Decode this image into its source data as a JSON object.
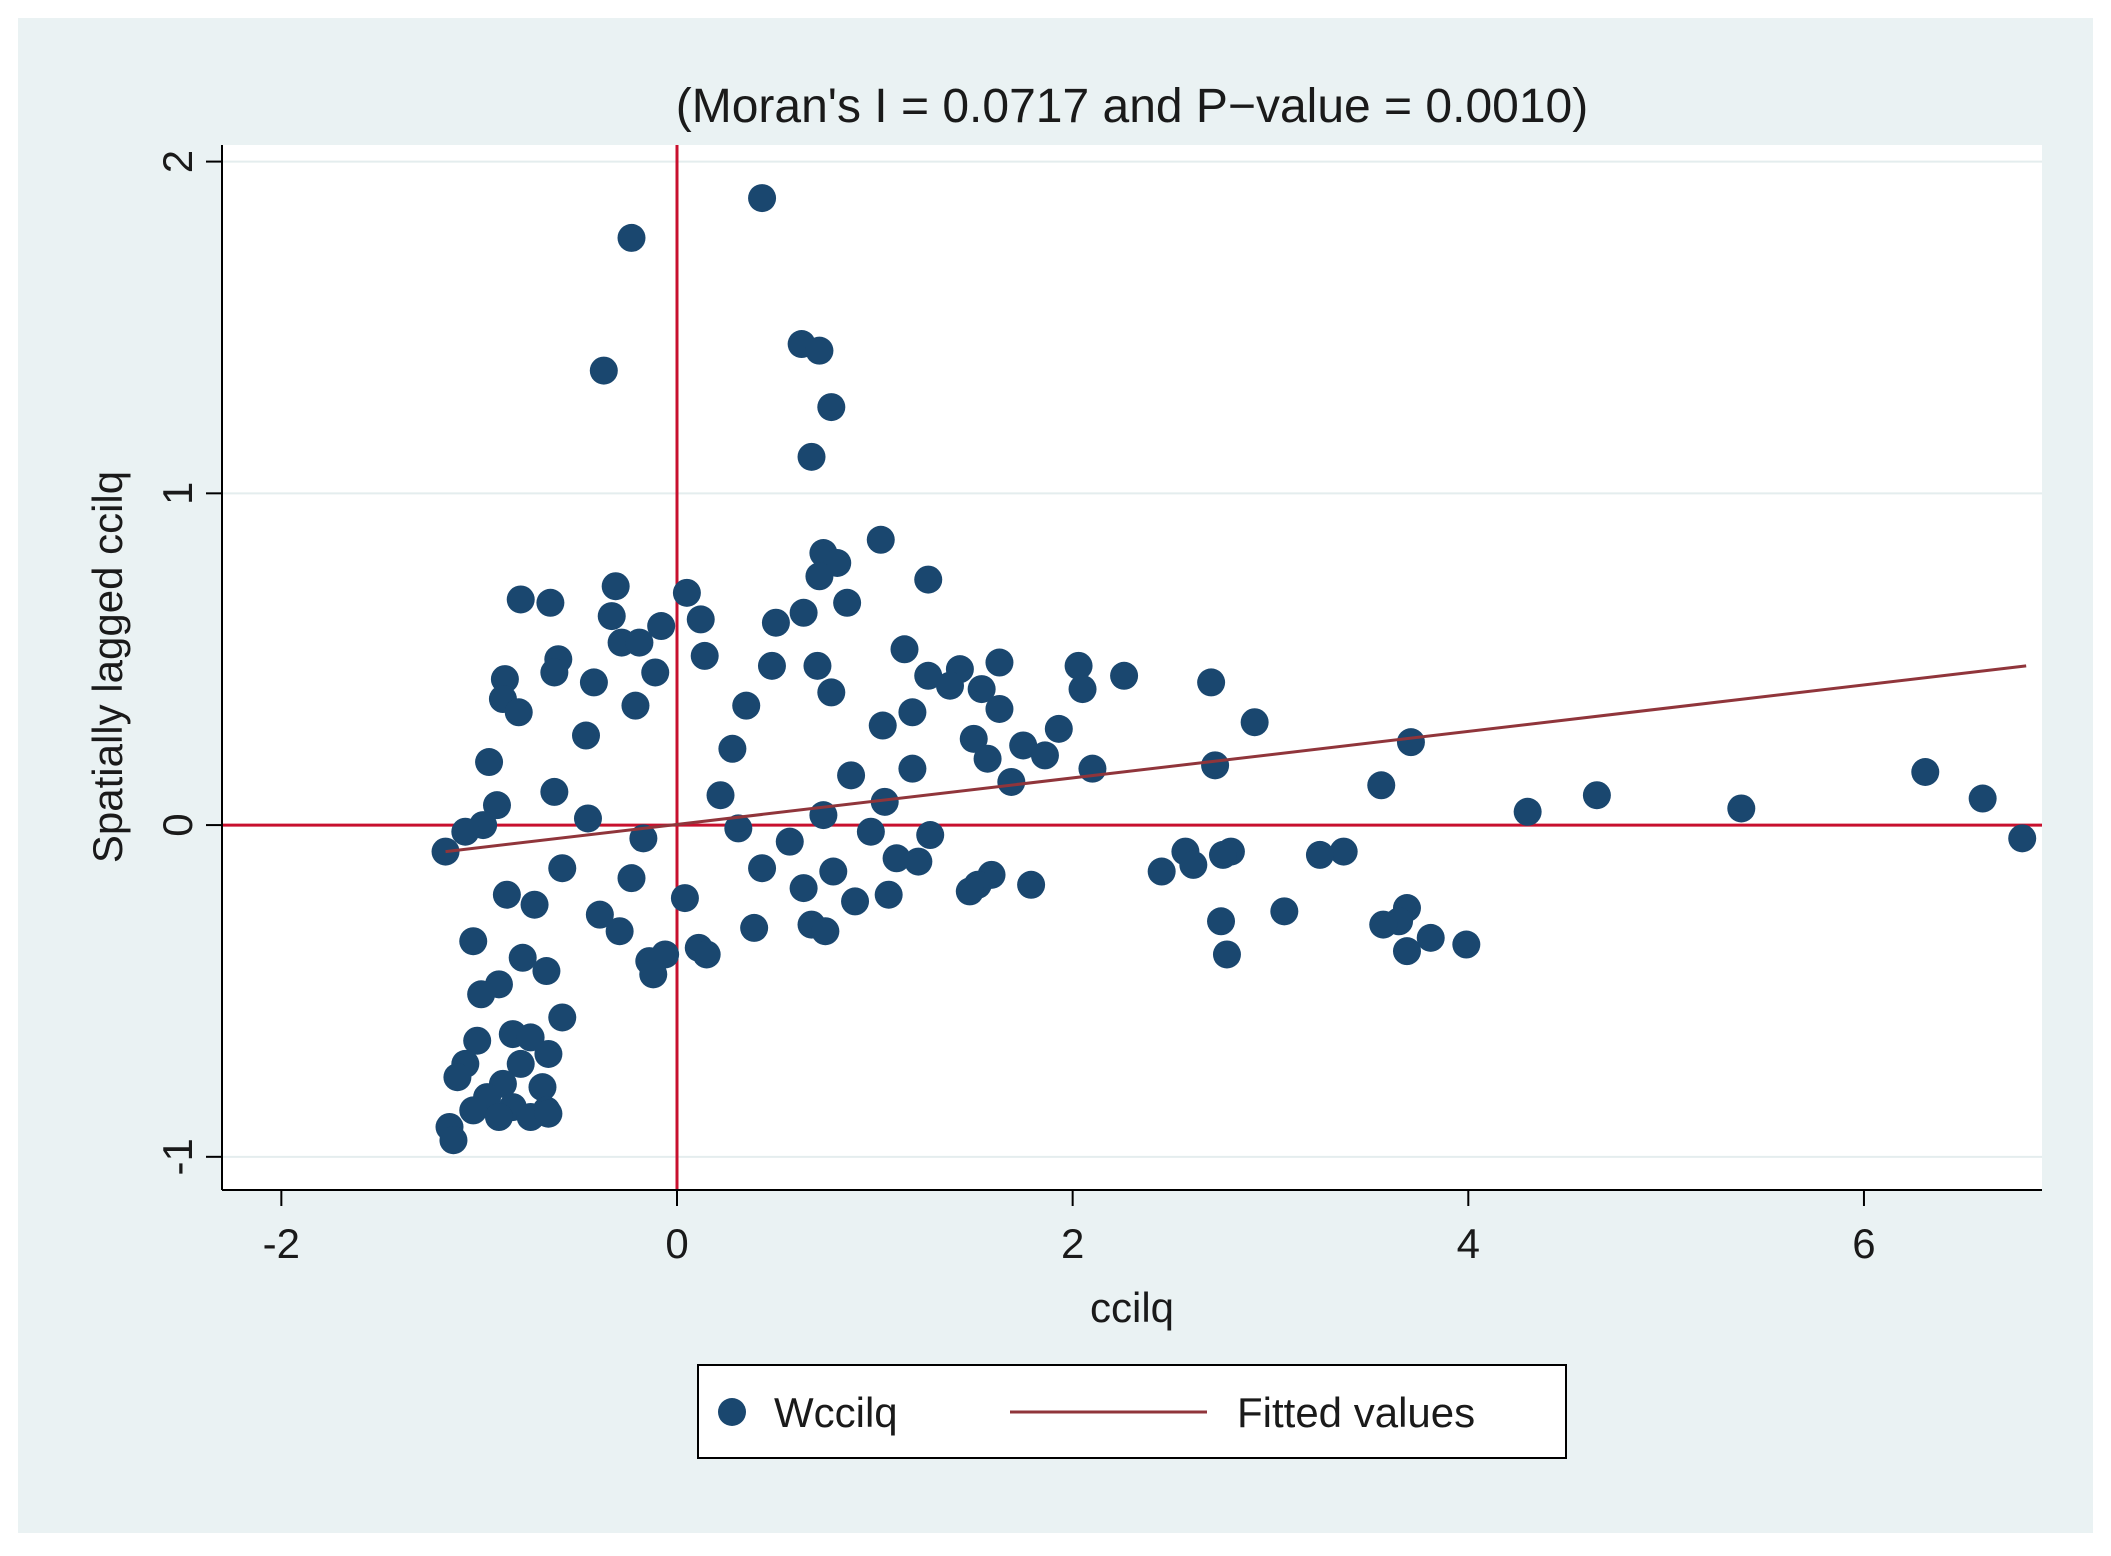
{
  "chart_data": {
    "type": "scatter",
    "title": "(Moran's I = 0.0717 and P−value = 0.0010)",
    "xlabel": "ccilq",
    "ylabel": "Spatially lagged ccilq",
    "xlim": [
      -2.3,
      6.9
    ],
    "ylim": [
      -1.1,
      2.05
    ],
    "x_ticks": [
      -2,
      0,
      2,
      4,
      6
    ],
    "x_tick_labels": [
      "-2",
      "0",
      "2",
      "4",
      "6"
    ],
    "y_ticks": [
      -1,
      0,
      1,
      2
    ],
    "y_tick_labels": [
      "-1",
      "0",
      "1",
      "2"
    ],
    "grid": "horizontal",
    "legend_position": "bottom",
    "reference_lines": {
      "x": 0,
      "y": 0,
      "color": "#c8102e"
    },
    "colors": {
      "page_background": "#ffffff",
      "outer_background": "#eaf2f3",
      "plot_background": "#ffffff",
      "points": "#1a476f",
      "fit_line": "#90353b",
      "reference_lines": "#c8102e",
      "grid": "#e4edee"
    },
    "series": [
      {
        "name": "Wccilq",
        "kind": "scatter",
        "points": [
          [
            0.43,
            1.89
          ],
          [
            -0.23,
            1.77
          ],
          [
            -0.37,
            1.37
          ],
          [
            0.63,
            1.45
          ],
          [
            0.72,
            1.43
          ],
          [
            0.78,
            1.26
          ],
          [
            0.68,
            1.11
          ],
          [
            1.03,
            0.86
          ],
          [
            0.74,
            0.82
          ],
          [
            0.81,
            0.79
          ],
          [
            0.72,
            0.75
          ],
          [
            1.27,
            0.74
          ],
          [
            -0.31,
            0.72
          ],
          [
            0.05,
            0.7
          ],
          [
            -0.79,
            0.68
          ],
          [
            -0.64,
            0.67
          ],
          [
            0.86,
            0.67
          ],
          [
            0.64,
            0.64
          ],
          [
            -0.33,
            0.63
          ],
          [
            0.12,
            0.62
          ],
          [
            0.5,
            0.61
          ],
          [
            -0.08,
            0.6
          ],
          [
            -0.28,
            0.55
          ],
          [
            -0.19,
            0.55
          ],
          [
            1.15,
            0.53
          ],
          [
            0.14,
            0.51
          ],
          [
            -0.6,
            0.5
          ],
          [
            1.63,
            0.49
          ],
          [
            2.03,
            0.48
          ],
          [
            0.71,
            0.48
          ],
          [
            0.48,
            0.48
          ],
          [
            1.43,
            0.47
          ],
          [
            -0.62,
            0.46
          ],
          [
            -0.11,
            0.46
          ],
          [
            1.27,
            0.45
          ],
          [
            2.26,
            0.45
          ],
          [
            -0.87,
            0.44
          ],
          [
            -0.42,
            0.43
          ],
          [
            2.7,
            0.43
          ],
          [
            1.38,
            0.42
          ],
          [
            2.05,
            0.41
          ],
          [
            1.54,
            0.41
          ],
          [
            0.78,
            0.4
          ],
          [
            -0.88,
            0.38
          ],
          [
            0.35,
            0.36
          ],
          [
            -0.21,
            0.36
          ],
          [
            1.63,
            0.35
          ],
          [
            -0.8,
            0.34
          ],
          [
            1.19,
            0.34
          ],
          [
            2.92,
            0.31
          ],
          [
            1.04,
            0.3
          ],
          [
            1.93,
            0.29
          ],
          [
            -0.46,
            0.27
          ],
          [
            1.5,
            0.26
          ],
          [
            3.71,
            0.25
          ],
          [
            1.75,
            0.24
          ],
          [
            0.28,
            0.23
          ],
          [
            1.86,
            0.21
          ],
          [
            1.57,
            0.2
          ],
          [
            -0.95,
            0.19
          ],
          [
            2.72,
            0.18
          ],
          [
            2.1,
            0.17
          ],
          [
            1.19,
            0.17
          ],
          [
            6.31,
            0.16
          ],
          [
            0.88,
            0.15
          ],
          [
            1.69,
            0.13
          ],
          [
            3.56,
            0.12
          ],
          [
            -0.62,
            0.1
          ],
          [
            4.65,
            0.09
          ],
          [
            0.22,
            0.09
          ],
          [
            6.6,
            0.08
          ],
          [
            1.05,
            0.07
          ],
          [
            -0.91,
            0.06
          ],
          [
            5.38,
            0.05
          ],
          [
            4.3,
            0.04
          ],
          [
            0.74,
            0.03
          ],
          [
            -0.45,
            0.02
          ],
          [
            -0.98,
            0.0
          ],
          [
            0.31,
            -0.01
          ],
          [
            -1.07,
            -0.02
          ],
          [
            0.98,
            -0.02
          ],
          [
            1.28,
            -0.03
          ],
          [
            -0.17,
            -0.04
          ],
          [
            6.8,
            -0.04
          ],
          [
            0.57,
            -0.05
          ],
          [
            -1.17,
            -0.08
          ],
          [
            2.8,
            -0.08
          ],
          [
            2.57,
            -0.08
          ],
          [
            3.37,
            -0.08
          ],
          [
            2.76,
            -0.09
          ],
          [
            3.25,
            -0.09
          ],
          [
            1.11,
            -0.1
          ],
          [
            1.22,
            -0.11
          ],
          [
            2.61,
            -0.12
          ],
          [
            -0.58,
            -0.13
          ],
          [
            0.43,
            -0.13
          ],
          [
            2.45,
            -0.14
          ],
          [
            0.79,
            -0.14
          ],
          [
            1.59,
            -0.15
          ],
          [
            -0.23,
            -0.16
          ],
          [
            1.52,
            -0.18
          ],
          [
            1.79,
            -0.18
          ],
          [
            0.64,
            -0.19
          ],
          [
            1.48,
            -0.2
          ],
          [
            -0.86,
            -0.21
          ],
          [
            1.07,
            -0.21
          ],
          [
            0.04,
            -0.22
          ],
          [
            0.9,
            -0.23
          ],
          [
            -0.72,
            -0.24
          ],
          [
            3.69,
            -0.25
          ],
          [
            3.07,
            -0.26
          ],
          [
            -0.39,
            -0.27
          ],
          [
            2.75,
            -0.29
          ],
          [
            3.65,
            -0.29
          ],
          [
            3.57,
            -0.3
          ],
          [
            0.68,
            -0.3
          ],
          [
            0.39,
            -0.31
          ],
          [
            -0.29,
            -0.32
          ],
          [
            0.75,
            -0.32
          ],
          [
            3.81,
            -0.34
          ],
          [
            -1.03,
            -0.35
          ],
          [
            3.99,
            -0.36
          ],
          [
            0.11,
            -0.37
          ],
          [
            3.69,
            -0.38
          ],
          [
            -0.06,
            -0.39
          ],
          [
            0.15,
            -0.39
          ],
          [
            2.78,
            -0.39
          ],
          [
            -0.78,
            -0.4
          ],
          [
            -0.14,
            -0.41
          ],
          [
            -0.66,
            -0.44
          ],
          [
            -0.12,
            -0.45
          ],
          [
            -0.9,
            -0.48
          ],
          [
            -0.99,
            -0.51
          ],
          [
            -0.58,
            -0.58
          ],
          [
            -0.83,
            -0.63
          ],
          [
            -0.74,
            -0.64
          ],
          [
            -1.01,
            -0.65
          ],
          [
            -0.65,
            -0.69
          ],
          [
            -0.79,
            -0.72
          ],
          [
            -1.07,
            -0.72
          ],
          [
            -0.88,
            -0.78
          ],
          [
            -0.68,
            -0.79
          ],
          [
            -1.11,
            -0.76
          ],
          [
            -0.96,
            -0.82
          ],
          [
            -0.83,
            -0.85
          ],
          [
            -0.66,
            -0.86
          ],
          [
            -1.03,
            -0.86
          ],
          [
            -0.74,
            -0.88
          ],
          [
            -0.9,
            -0.88
          ],
          [
            -1.15,
            -0.91
          ],
          [
            -0.65,
            -0.87
          ],
          [
            -1.13,
            -0.95
          ]
        ]
      },
      {
        "name": "Fitted values",
        "kind": "line",
        "points": [
          [
            -1.17,
            -0.08
          ],
          [
            6.82,
            0.48
          ]
        ]
      }
    ]
  }
}
